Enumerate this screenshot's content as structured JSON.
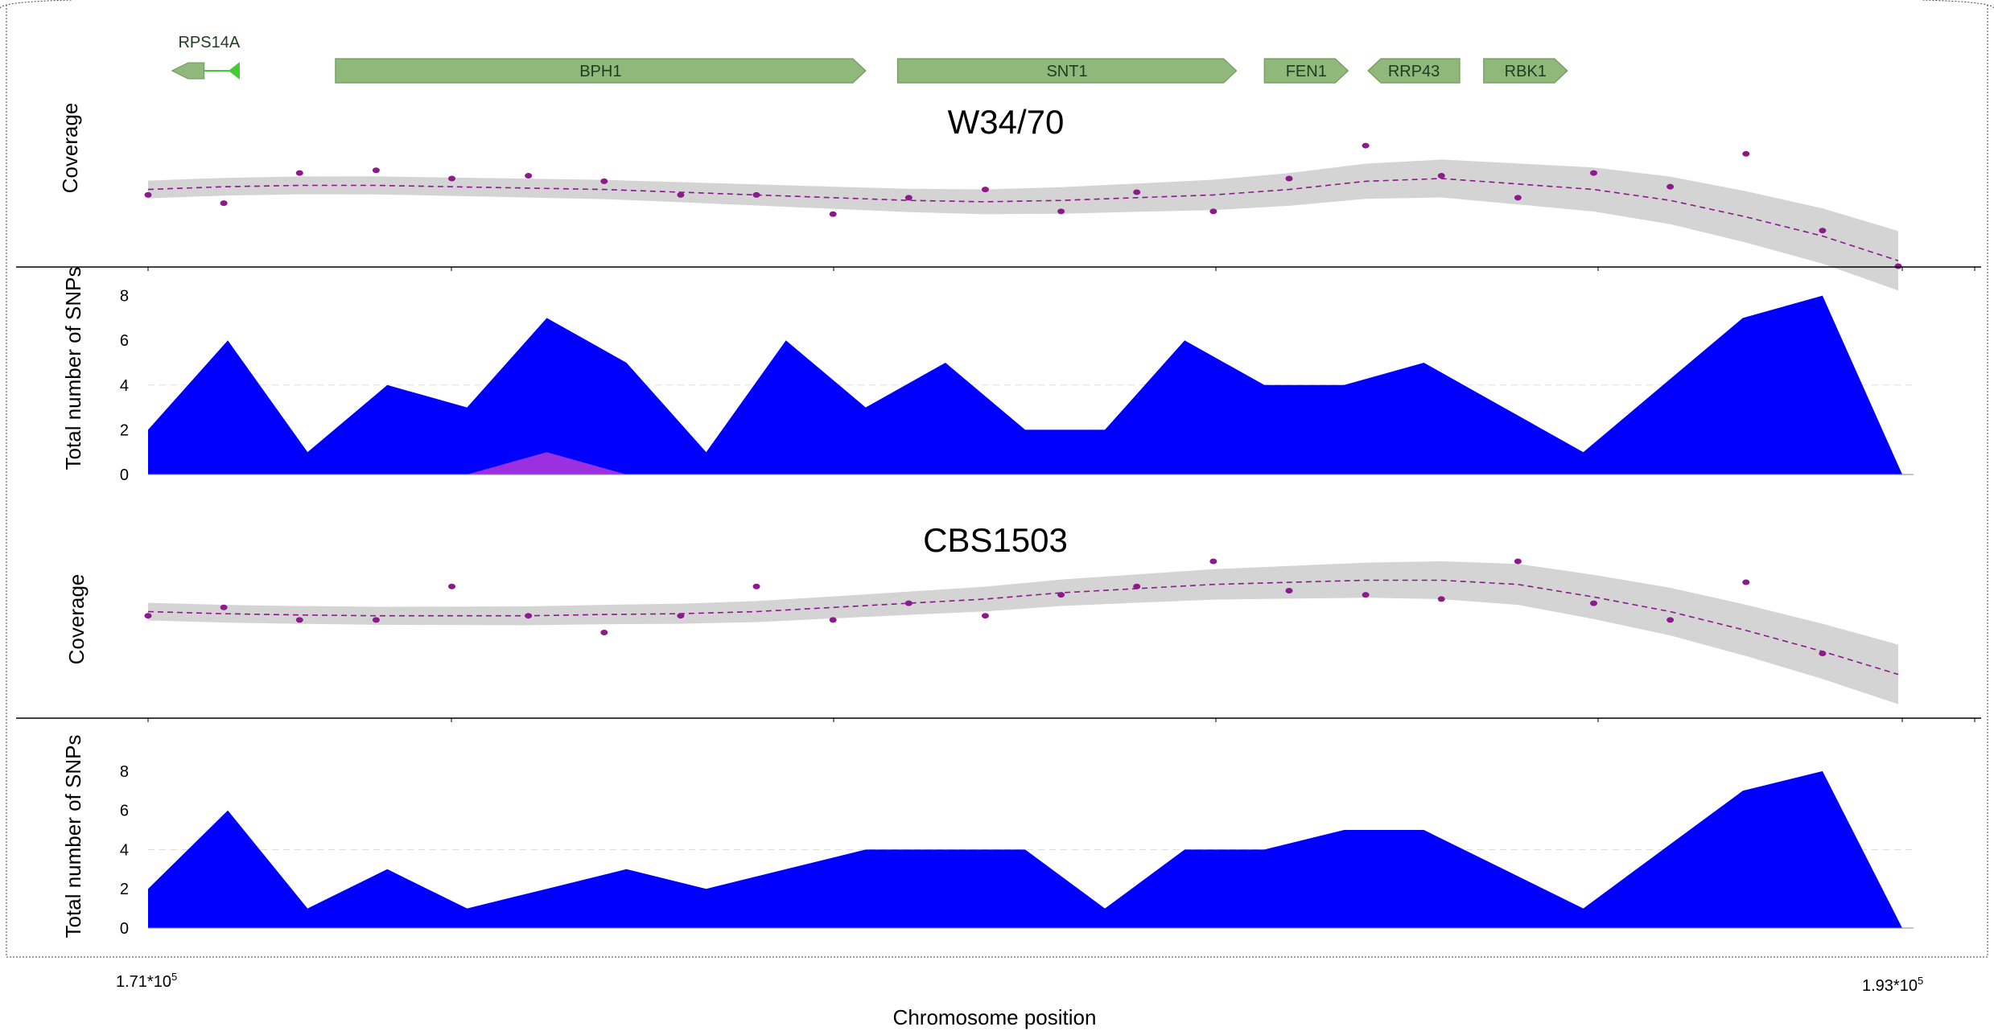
{
  "colors": {
    "gene_fill": "#8fb87a",
    "gene_stroke": "#6f9a5c",
    "gene_rps14a": "#44cc33",
    "coverage_band": "#d4d4d4",
    "coverage_points": "#8b1a8b",
    "snp_area": "#0000ff",
    "snp_secondary_area": "#9b30e0",
    "axis": "#000000"
  },
  "genes": [
    {
      "name": "RPS14A",
      "start": 171300,
      "end": 172150,
      "strand": "-",
      "label_above": true
    },
    {
      "name": "BPH1",
      "start": 173350,
      "end": 180000,
      "strand": "+"
    },
    {
      "name": "SNT1",
      "start": 180400,
      "end": 184650,
      "strand": "+"
    },
    {
      "name": "FEN1",
      "start": 185000,
      "end": 186050,
      "strand": "+"
    },
    {
      "name": "RRP43",
      "start": 186300,
      "end": 187450,
      "strand": "-"
    },
    {
      "name": "RBK1",
      "start": 187750,
      "end": 188800,
      "strand": "+"
    }
  ],
  "x_axis": {
    "title": "Chromosome position",
    "min": 171000,
    "max": 193000,
    "left_label": "1.71*10",
    "left_label_exp": "5",
    "right_label": "1.93*10",
    "right_label_exp": "5"
  },
  "chart_data": [
    {
      "panel": "W34/70 coverage",
      "type": "scatter",
      "title": "W34/70",
      "ylabel": "Coverage",
      "x": [
        171000,
        171950,
        172900,
        173860,
        174810,
        175770,
        176720,
        177680,
        178630,
        179590,
        180540,
        181500,
        182450,
        183400,
        184360,
        185310,
        186270,
        187220,
        188180,
        189130,
        190090,
        191040,
        192000,
        192950
      ],
      "y": [
        52,
        49,
        60,
        61,
        58,
        59,
        57,
        52,
        52,
        45,
        51,
        54,
        46,
        53,
        46,
        58,
        70,
        59,
        51,
        60,
        55,
        67,
        39,
        26
      ],
      "trend": [
        54,
        55,
        55.5,
        55.5,
        55,
        54.5,
        54,
        53,
        52,
        51,
        50,
        49.5,
        50,
        51,
        52,
        54,
        57,
        58,
        56,
        54,
        50,
        44,
        37,
        28
      ],
      "ylim": [
        26,
        80
      ]
    },
    {
      "panel": "W34/70 SNPs",
      "type": "area",
      "ylabel": "Total number of SNPs",
      "yticks": [
        0,
        2,
        4,
        6,
        8
      ],
      "ylim": [
        0,
        8.2
      ],
      "x": [
        171000,
        172000,
        173000,
        174000,
        175000,
        176000,
        177000,
        178000,
        179000,
        180000,
        181000,
        182000,
        183000,
        184000,
        185000,
        186000,
        187000,
        188000,
        189000,
        190000,
        191000,
        192000,
        193000
      ],
      "values": [
        2,
        6,
        1,
        4,
        3,
        7,
        5,
        1,
        6,
        3,
        5,
        2,
        2,
        6,
        4,
        4,
        5,
        3,
        1,
        4,
        7,
        8,
        0
      ],
      "secondary_x": [
        175000,
        176000,
        177000
      ],
      "secondary_values": [
        0,
        1,
        0
      ]
    },
    {
      "panel": "CBS1503 coverage",
      "type": "scatter",
      "title": "CBS1503",
      "ylabel": "Coverage",
      "x": [
        171000,
        171950,
        172900,
        173860,
        174810,
        175770,
        176720,
        177680,
        178630,
        179590,
        180540,
        181500,
        182450,
        183400,
        184360,
        185310,
        186270,
        187220,
        188180,
        189130,
        190090,
        191040,
        192000,
        192950
      ],
      "y": [
        49,
        51,
        48,
        48,
        56,
        49,
        45,
        49,
        56,
        48,
        52,
        49,
        54,
        56,
        62,
        55,
        54,
        53,
        62,
        52,
        48,
        57,
        40,
        null
      ],
      "trend": [
        50,
        49.5,
        49.2,
        49,
        49,
        49,
        49.3,
        49.5,
        50,
        51,
        52,
        53,
        54.5,
        55.5,
        56.5,
        57,
        57.5,
        57.5,
        56.5,
        53.5,
        50,
        45.5,
        40.5,
        35
      ],
      "ylim": [
        33,
        67
      ]
    },
    {
      "panel": "CBS1503 SNPs",
      "type": "area",
      "ylabel": "Total number of SNPs",
      "yticks": [
        0,
        2,
        4,
        6,
        8
      ],
      "ylim": [
        0,
        8.2
      ],
      "x": [
        171000,
        172000,
        173000,
        174000,
        175000,
        176000,
        177000,
        178000,
        179000,
        180000,
        181000,
        182000,
        183000,
        184000,
        185000,
        186000,
        187000,
        188000,
        189000,
        190000,
        191000,
        192000,
        193000
      ],
      "values": [
        2,
        6,
        1,
        3,
        1,
        2,
        3,
        2,
        3,
        4,
        4,
        4,
        1,
        4,
        4,
        5,
        5,
        3,
        1,
        4,
        7,
        8,
        0
      ]
    }
  ]
}
